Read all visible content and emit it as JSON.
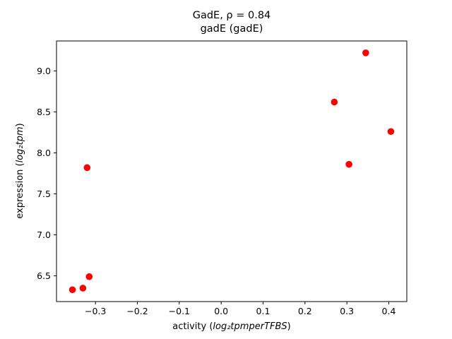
{
  "chart_data": {
    "type": "scatter",
    "title_line1": "GadE, ρ = 0.84",
    "title_line2": "gadE (gadE)",
    "xlabel_prefix": "activity (",
    "xlabel_math": "log₂tpmperTFBS",
    "xlabel_suffix": ")",
    "ylabel_prefix": "expression (",
    "ylabel_math": "log₂tpm",
    "ylabel_suffix": ")",
    "xlim": [
      -0.393,
      0.443
    ],
    "ylim": [
      6.186,
      9.365
    ],
    "xticks": [
      -0.3,
      -0.2,
      -0.1,
      0.0,
      0.1,
      0.2,
      0.3,
      0.4
    ],
    "yticks": [
      6.5,
      7.0,
      7.5,
      8.0,
      8.5,
      9.0
    ],
    "grid": false,
    "legend": null,
    "marker_color": "#ff0000",
    "points": [
      {
        "x": -0.355,
        "y": 6.33
      },
      {
        "x": -0.33,
        "y": 6.35
      },
      {
        "x": -0.315,
        "y": 6.49
      },
      {
        "x": -0.32,
        "y": 7.82
      },
      {
        "x": 0.27,
        "y": 8.62
      },
      {
        "x": 0.305,
        "y": 7.86
      },
      {
        "x": 0.345,
        "y": 9.22
      },
      {
        "x": 0.405,
        "y": 8.26
      }
    ]
  }
}
